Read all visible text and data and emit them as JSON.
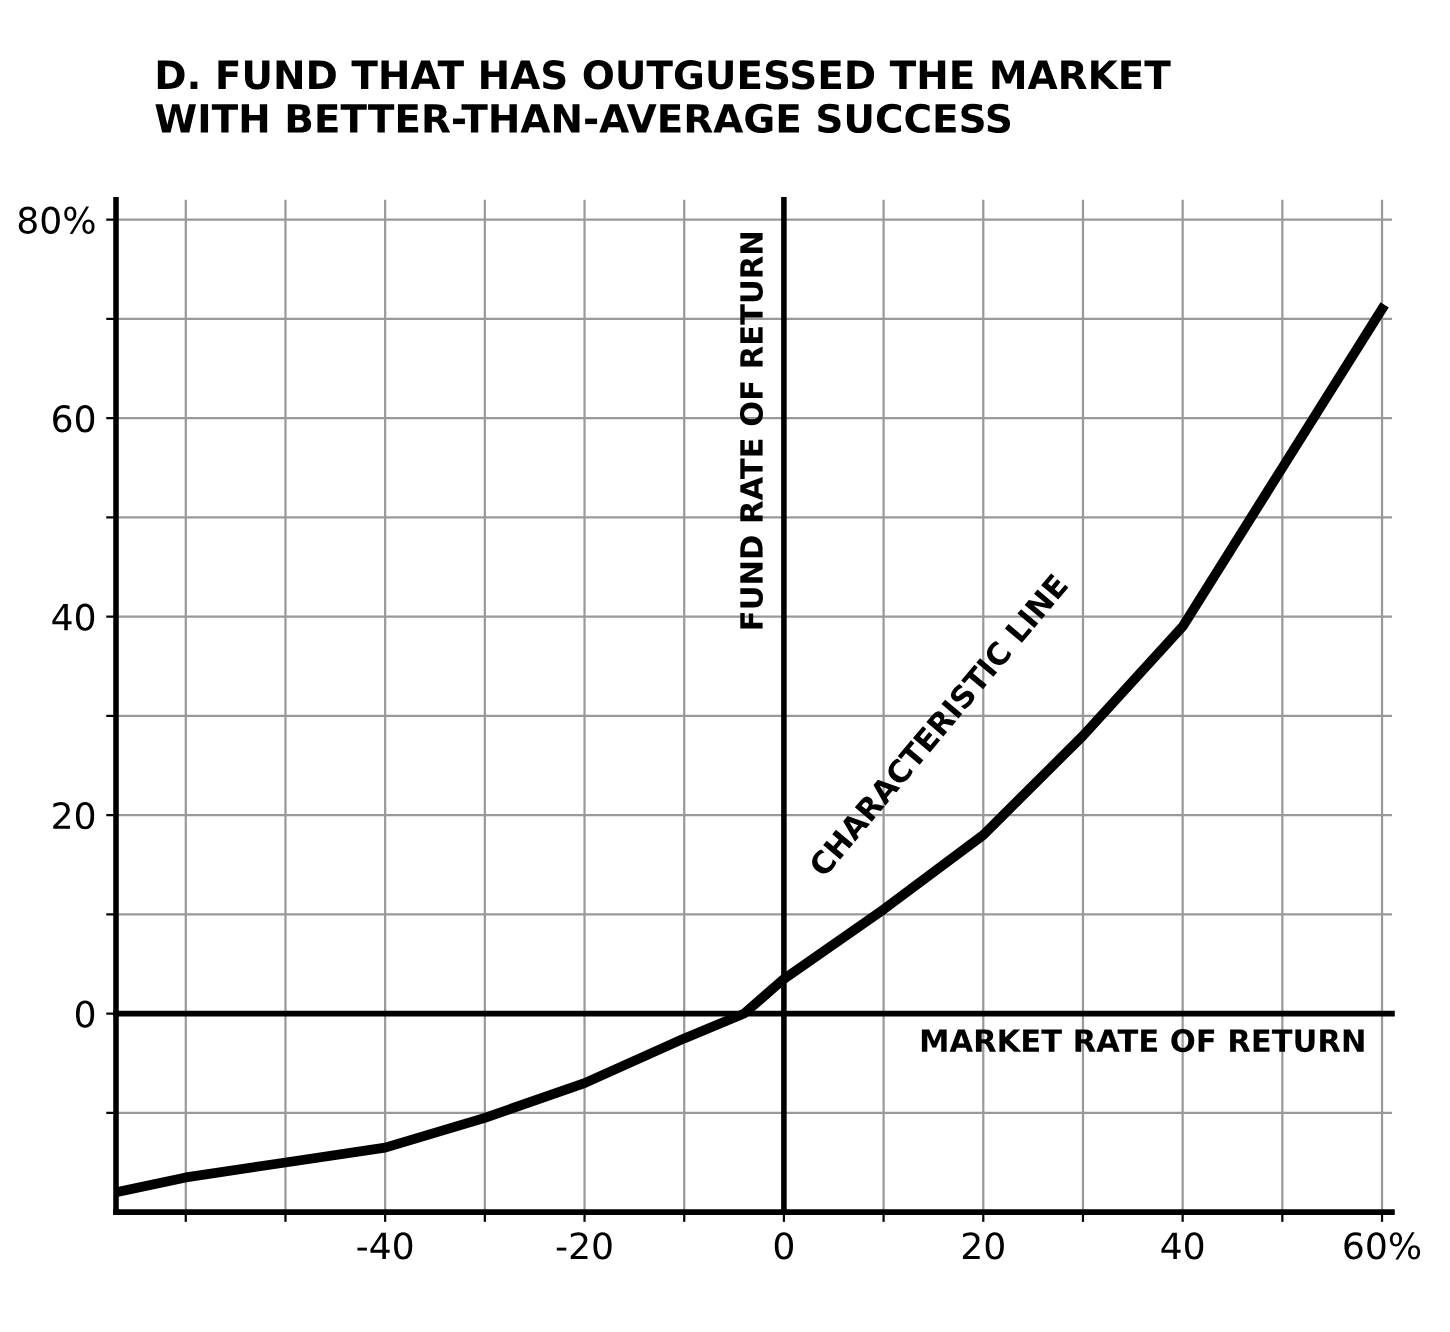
{
  "chart_data": {
    "type": "line",
    "title": "D. FUND THAT HAS OUTGUESSED THE MARKET\nWITH BETTER-THAN-AVERAGE SUCCESS",
    "x": [
      -67,
      -60,
      -50,
      -40,
      -30,
      -20,
      -10,
      -4,
      0,
      10,
      20,
      30,
      40,
      50,
      60
    ],
    "series": [
      {
        "color": "#000000",
        "values": [
          -18,
          -16.5,
          -15,
          -13.5,
          -10.5,
          -7,
          -2.5,
          0,
          3.5,
          10.5,
          18,
          28,
          39,
          55,
          71
        ]
      }
    ],
    "xlim": [
      -67,
      61
    ],
    "ylim": [
      -20,
      82
    ],
    "xticks": [
      {
        "value": -60,
        "label": null
      },
      {
        "value": -50,
        "label": null
      },
      -40,
      {
        "value": -30,
        "label": null
      },
      -20,
      {
        "value": -10,
        "label": null
      },
      0,
      {
        "value": 10,
        "label": null
      },
      20,
      {
        "value": 30,
        "label": null
      },
      40,
      {
        "value": 50,
        "label": null
      },
      {
        "value": 60,
        "label": "60%"
      }
    ],
    "yticks": [
      {
        "value": -10,
        "label": null
      },
      0,
      {
        "value": 10,
        "label": null
      },
      20,
      {
        "value": 30,
        "label": null
      },
      40,
      {
        "value": 50,
        "label": null
      },
      60,
      {
        "value": 70,
        "label": null
      },
      {
        "value": 80,
        "label": "80%"
      }
    ],
    "grid": true,
    "marker": "none",
    "line_style": "solid",
    "xlabel": "MARKET RATE OF RETURN",
    "ylabel": "FUND RATE OF RETURN",
    "annotations": [
      "CHARACTERISTIC LINE"
    ]
  }
}
